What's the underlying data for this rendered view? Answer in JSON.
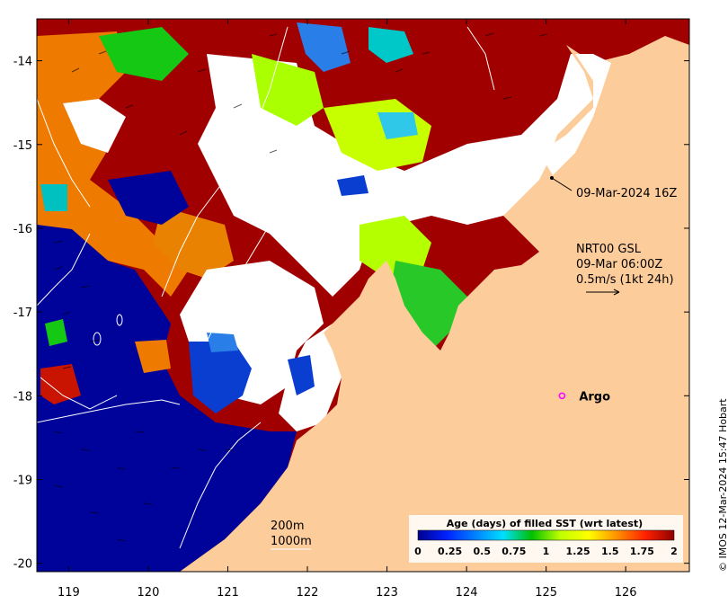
{
  "map": {
    "lon_range": [
      118.6,
      126.8
    ],
    "lat_range": [
      -20.1,
      -13.5
    ],
    "x_ticks": [
      {
        "value": 119,
        "label": "119"
      },
      {
        "value": 120,
        "label": "120"
      },
      {
        "value": 121,
        "label": "121"
      },
      {
        "value": 122,
        "label": "122"
      },
      {
        "value": 123,
        "label": "123"
      },
      {
        "value": 124,
        "label": "124"
      },
      {
        "value": 125,
        "label": "125"
      },
      {
        "value": 126,
        "label": "126"
      }
    ],
    "y_ticks": [
      {
        "value": -14,
        "label": "-14"
      },
      {
        "value": -15,
        "label": "-15"
      },
      {
        "value": -16,
        "label": "-16"
      },
      {
        "value": -17,
        "label": "-17"
      },
      {
        "value": -18,
        "label": "-18"
      },
      {
        "value": -19,
        "label": "-19"
      },
      {
        "value": -20,
        "label": "-20"
      }
    ],
    "land_color": "#fdcc9b",
    "no_data_color": "#ffffff"
  },
  "annotations": {
    "timestamp_label": "09-Mar-2024 16Z",
    "current_product": "NRT00 GSL",
    "current_time": "09-Mar 06:00Z",
    "current_scale": "0.5m/s (1kt 24h)",
    "argo_label": "Argo",
    "isobath_200": "200m",
    "isobath_1000": "1000m"
  },
  "argo_float": {
    "lon": 125.2,
    "lat": -18.0,
    "color": "#ff00ff"
  },
  "colorbar": {
    "title": "Age (days) of filled SST (wrt latest)",
    "tick_labels": [
      "0",
      "0.25",
      "0.5",
      "0.75",
      "1",
      "1.25",
      "1.5",
      "1.75",
      "2"
    ],
    "colors": [
      "#00008f",
      "#0020ff",
      "#0080ff",
      "#00dfff",
      "#00c000",
      "#bfff00",
      "#ffff00",
      "#ff9000",
      "#ff2000",
      "#8f0000"
    ]
  },
  "credit": "© IMOS 12-Mar-2024 15:47 Hobart",
  "palette": {
    "navy": "#00039a",
    "blue": "#0a3ed0",
    "lightblue": "#2a7ee8",
    "cyan": "#00c8c8",
    "green": "#14c814",
    "lime": "#aaff00",
    "yellow": "#eaff00",
    "orange": "#ee7a00",
    "red": "#c81400",
    "darkred": "#a00000"
  }
}
